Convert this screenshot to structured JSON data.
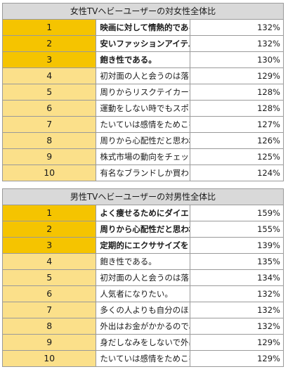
{
  "female": {
    "title": "女性TVヘビーユーザーの対女性全体比",
    "rows": [
      {
        "rank": "1",
        "text": "映画に対して情熱的である。",
        "pct": "132%"
      },
      {
        "rank": "2",
        "text": "安いファッションアイテムを、より高いものと混ぜて着る。",
        "pct": "132%"
      },
      {
        "rank": "3",
        "text": "飽き性である。",
        "pct": "130%"
      },
      {
        "rank": "4",
        "text": "初対面の人と会うのは落ち着かない。",
        "pct": "129%"
      },
      {
        "rank": "5",
        "text": "周りからリスクテイカーだと思われている。",
        "pct": "128%"
      },
      {
        "rank": "6",
        "text": "運動をしない時でもスポーツウェアを着用している。",
        "pct": "128%"
      },
      {
        "rank": "7",
        "text": "たいていは感情をためこむほうだ。",
        "pct": "127%"
      },
      {
        "rank": "8",
        "text": "周りから心配性だと思われている。",
        "pct": "126%"
      },
      {
        "rank": "9",
        "text": "株式市場の動向をチェックするのが好きだ。",
        "pct": "125%"
      },
      {
        "rank": "10",
        "text": "有名なブランドしか買わない",
        "pct": "124%"
      }
    ]
  },
  "male": {
    "title": "男性TVヘビーユーザーの対男性全体比",
    "rows": [
      {
        "rank": "1",
        "text": "よく痩せるためにダイエットをする。",
        "pct": "159%"
      },
      {
        "rank": "2",
        "text": "周りから心配性だと思われている。",
        "pct": "155%"
      },
      {
        "rank": "3",
        "text": "定期的にエクササイズをしている。",
        "pct": "139%"
      },
      {
        "rank": "4",
        "text": "飽き性である。",
        "pct": "135%"
      },
      {
        "rank": "5",
        "text": "初対面の人と会うのは落ち着かない。",
        "pct": "134%"
      },
      {
        "rank": "6",
        "text": "人気者になりたい。",
        "pct": "132%"
      },
      {
        "rank": "7",
        "text": "多くの人よりも自分のほうが能力を持っている。",
        "pct": "132%"
      },
      {
        "rank": "8",
        "text": "外出はお金がかかるので、インドアにシフトしている。",
        "pct": "132%"
      },
      {
        "rank": "9",
        "text": "身だしなみをしないで外出することはしない。",
        "pct": "129%"
      },
      {
        "rank": "10",
        "text": "たいていは感情をためこむほうだ。",
        "pct": "129%"
      }
    ]
  }
}
